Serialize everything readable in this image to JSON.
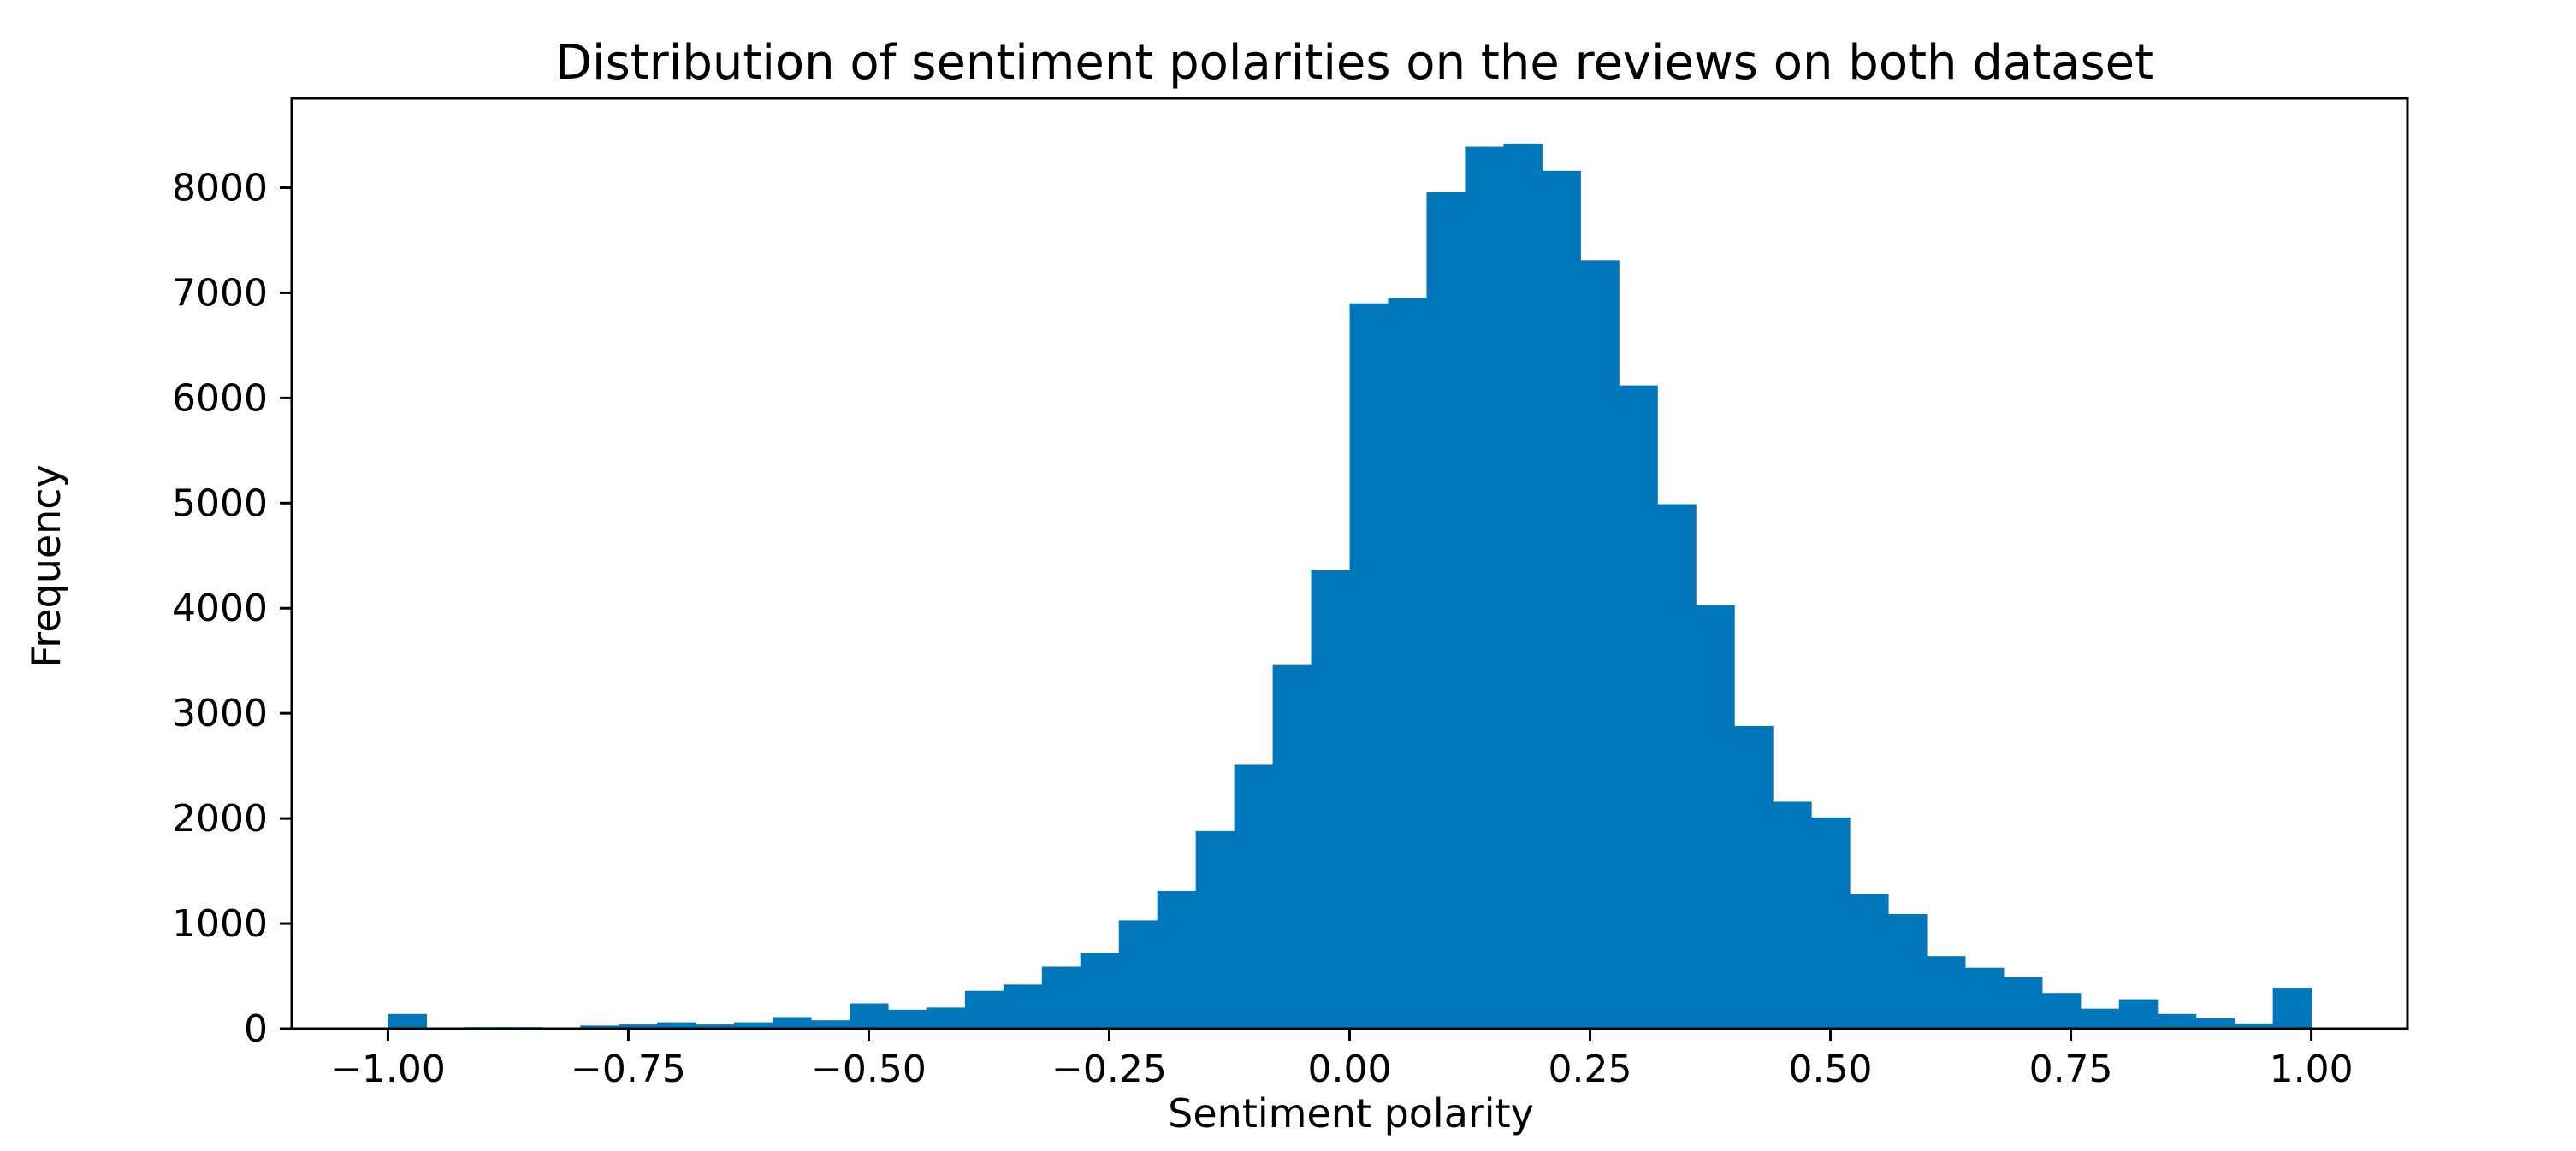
{
  "chart_data": {
    "type": "bar",
    "histogram": true,
    "title": "Distribution of sentiment polarities on the reviews on both  dataset",
    "xlabel": "Sentiment polarity",
    "ylabel": "Frequency",
    "xlim": [
      -1.1,
      1.1
    ],
    "ylim": [
      0,
      8850
    ],
    "bin_edges": [
      -1.0,
      -0.96,
      -0.92,
      -0.88,
      -0.84,
      -0.8,
      -0.76,
      -0.72,
      -0.68,
      -0.64,
      -0.6,
      -0.56,
      -0.52,
      -0.48,
      -0.44,
      -0.4,
      -0.36,
      -0.32,
      -0.28,
      -0.24,
      -0.2,
      -0.16,
      -0.12,
      -0.08,
      -0.04,
      0.0,
      0.04,
      0.08,
      0.12,
      0.16,
      0.2,
      0.24,
      0.28,
      0.32,
      0.36,
      0.4,
      0.44,
      0.48,
      0.52,
      0.56,
      0.6,
      0.64,
      0.68,
      0.72,
      0.76,
      0.8,
      0.84,
      0.88,
      0.92,
      0.96,
      1.0
    ],
    "values": [
      140,
      10,
      15,
      15,
      5,
      30,
      40,
      60,
      40,
      60,
      110,
      80,
      240,
      180,
      200,
      360,
      420,
      590,
      720,
      1030,
      1310,
      1880,
      2510,
      3460,
      4360,
      6900,
      6950,
      7960,
      8390,
      8420,
      8160,
      7310,
      6120,
      4990,
      4030,
      2880,
      2160,
      2010,
      1280,
      1090,
      690,
      580,
      490,
      340,
      190,
      280,
      140,
      100,
      50,
      390
    ],
    "xticks": [
      -1.0,
      -0.75,
      -0.5,
      -0.25,
      0.0,
      0.25,
      0.5,
      0.75,
      1.0
    ],
    "xtick_labels": [
      "−1.00",
      "−0.75",
      "−0.50",
      "−0.25",
      "0.00",
      "0.25",
      "0.50",
      "0.75",
      "1.00"
    ],
    "yticks": [
      0,
      1000,
      2000,
      3000,
      4000,
      5000,
      6000,
      7000,
      8000
    ],
    "ytick_labels": [
      "0",
      "1000",
      "2000",
      "3000",
      "4000",
      "5000",
      "6000",
      "7000",
      "8000"
    ],
    "bar_color": "#0077bb",
    "grid": false,
    "legend": "none"
  }
}
